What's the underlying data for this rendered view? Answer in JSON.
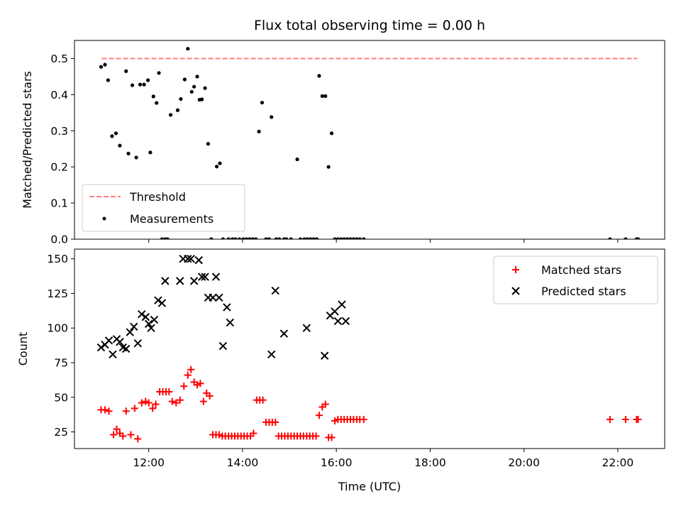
{
  "chart_data": [
    {
      "type": "scatter",
      "title": "Flux total observing time = 0.00 h",
      "xlabel": "",
      "ylabel": "Matched/Predicted stars",
      "xlim": [
        "10:25",
        "23:00"
      ],
      "ylim": [
        0,
        0.55
      ],
      "yticks": [
        0.0,
        0.1,
        0.2,
        0.3,
        0.4,
        0.5
      ],
      "ytick_labels": [
        "0.0",
        "0.1",
        "0.2",
        "0.3",
        "0.4",
        "0.5"
      ],
      "legend_position": "lower-left",
      "series": [
        {
          "name": "Threshold",
          "style": "dashed-line",
          "color": "#ff7f7f",
          "x": [
            "11:00",
            "22:25"
          ],
          "y": [
            0.5,
            0.5
          ]
        },
        {
          "name": "Measurements",
          "style": "dot",
          "color": "#000000",
          "x": [
            "10:59",
            "11:04",
            "11:08",
            "11:13",
            "11:18",
            "11:23",
            "11:31",
            "11:34",
            "11:39",
            "11:44",
            "11:49",
            "11:54",
            "11:59",
            "12:02",
            "12:06",
            "12:10",
            "12:13",
            "12:17",
            "12:21",
            "12:24",
            "12:28",
            "12:37",
            "12:41",
            "12:46",
            "12:50",
            "12:55",
            "12:58",
            "13:02",
            "13:05",
            "13:08",
            "13:12",
            "13:16",
            "13:20",
            "13:27",
            "13:31",
            "13:35",
            "13:42",
            "13:47",
            "13:51",
            "13:56",
            "14:01",
            "14:05",
            "14:09",
            "14:13",
            "14:17",
            "14:21",
            "14:25",
            "14:30",
            "14:34",
            "14:37",
            "14:43",
            "14:47",
            "14:53",
            "14:56",
            "15:02",
            "15:10",
            "15:14",
            "15:19",
            "15:23",
            "15:27",
            "15:31",
            "15:35",
            "15:38",
            "15:42",
            "15:46",
            "15:50",
            "15:54",
            "15:58",
            "16:02",
            "16:06",
            "16:10",
            "16:14",
            "16:18",
            "16:22",
            "16:26",
            "16:30",
            "16:35",
            "21:50",
            "22:10",
            "22:24",
            "22:26"
          ],
          "y": [
            0.477,
            0.483,
            0.44,
            0.285,
            0.293,
            0.259,
            0.465,
            0.237,
            0.426,
            0.226,
            0.428,
            0.428,
            0.44,
            0.24,
            0.395,
            0.377,
            0.46,
            0.0,
            0.0,
            0.0,
            0.344,
            0.357,
            0.388,
            0.442,
            0.527,
            0.408,
            0.422,
            0.45,
            0.386,
            0.387,
            0.418,
            0.264,
            0.0,
            0.201,
            0.21,
            0.0,
            0.0,
            0.0,
            0.0,
            0.0,
            0.0,
            0.0,
            0.0,
            0.0,
            0.0,
            0.298,
            0.378,
            0.0,
            0.0,
            0.338,
            0.0,
            0.0,
            0.0,
            0.0,
            0.0,
            0.221,
            0.0,
            0.0,
            0.0,
            0.0,
            0.0,
            0.0,
            0.452,
            0.396,
            0.396,
            0.2,
            0.293,
            0.0,
            0.0,
            0.0,
            0.0,
            0.0,
            0.0,
            0.0,
            0.0,
            0.0,
            0.0,
            0.0,
            0.0,
            0.0,
            0.0
          ]
        }
      ]
    },
    {
      "type": "scatter",
      "title": "",
      "xlabel": "Time (UTC)",
      "ylabel": "Count",
      "xlim": [
        "10:25",
        "23:00"
      ],
      "ylim": [
        13,
        157
      ],
      "yticks": [
        25,
        50,
        75,
        100,
        125,
        150
      ],
      "ytick_labels": [
        "25",
        "50",
        "75",
        "100",
        "125",
        "150"
      ],
      "xticks": [
        "12:00",
        "14:00",
        "16:00",
        "18:00",
        "20:00",
        "22:00"
      ],
      "xtick_labels": [
        "12:00",
        "14:00",
        "16:00",
        "18:00",
        "20:00",
        "22:00"
      ],
      "legend_position": "upper-right",
      "series": [
        {
          "name": "Matched stars",
          "marker": "plus",
          "color": "#ff0000",
          "x": [
            "10:59",
            "11:04",
            "11:09",
            "11:15",
            "11:19",
            "11:23",
            "11:27",
            "11:31",
            "11:37",
            "11:42",
            "11:46",
            "11:51",
            "11:56",
            "12:00",
            "12:05",
            "12:09",
            "12:14",
            "12:18",
            "12:22",
            "12:26",
            "12:30",
            "12:35",
            "12:40",
            "12:45",
            "12:50",
            "12:54",
            "12:58",
            "13:02",
            "13:06",
            "13:10",
            "13:14",
            "13:18",
            "13:22",
            "13:26",
            "13:30",
            "13:34",
            "13:38",
            "13:42",
            "13:46",
            "13:50",
            "13:54",
            "13:58",
            "14:02",
            "14:06",
            "14:10",
            "14:14",
            "14:18",
            "14:22",
            "14:26",
            "14:30",
            "14:34",
            "14:38",
            "14:42",
            "14:46",
            "14:50",
            "14:54",
            "14:58",
            "15:02",
            "15:06",
            "15:10",
            "15:14",
            "15:18",
            "15:22",
            "15:26",
            "15:30",
            "15:34",
            "15:38",
            "15:42",
            "15:46",
            "15:50",
            "15:54",
            "15:58",
            "16:02",
            "16:06",
            "16:10",
            "16:14",
            "16:18",
            "16:22",
            "16:26",
            "16:30",
            "16:35",
            "21:50",
            "22:10",
            "22:24",
            "22:26"
          ],
          "y": [
            41,
            41,
            40,
            23,
            27,
            24,
            22,
            40,
            23,
            42,
            20,
            46,
            47,
            46,
            42,
            45,
            54,
            54,
            54,
            54,
            47,
            46,
            48,
            58,
            66,
            70,
            61,
            59,
            60,
            47,
            53,
            51,
            23,
            23,
            23,
            22,
            22,
            22,
            22,
            22,
            22,
            22,
            22,
            22,
            22,
            24,
            48,
            48,
            48,
            32,
            32,
            32,
            32,
            22,
            22,
            22,
            22,
            22,
            22,
            22,
            22,
            22,
            22,
            22,
            22,
            22,
            37,
            43,
            45,
            21,
            21,
            33,
            34,
            34,
            34,
            34,
            34,
            34,
            34,
            34,
            34,
            34,
            34,
            34,
            34
          ]
        },
        {
          "name": "Predicted stars",
          "marker": "x",
          "color": "#000000",
          "x": [
            "10:59",
            "11:04",
            "11:09",
            "11:14",
            "11:19",
            "11:23",
            "11:27",
            "11:31",
            "11:36",
            "11:41",
            "11:46",
            "11:51",
            "11:56",
            "12:00",
            "12:03",
            "12:07",
            "12:12",
            "12:17",
            "12:21",
            "12:40",
            "12:44",
            "12:50",
            "12:54",
            "12:58",
            "13:04",
            "13:08",
            "13:12",
            "13:16",
            "13:22",
            "13:26",
            "13:30",
            "13:35",
            "13:40",
            "13:44",
            "14:37",
            "14:42",
            "14:53",
            "15:22",
            "15:45",
            "15:52",
            "15:58",
            "16:02",
            "16:07",
            "16:12"
          ],
          "y": [
            86,
            88,
            91,
            81,
            92,
            90,
            86,
            85,
            97,
            101,
            89,
            110,
            108,
            103,
            100,
            106,
            120,
            118,
            134,
            134,
            150,
            150,
            150,
            134,
            149,
            137,
            137,
            122,
            122,
            137,
            122,
            87,
            115,
            104,
            81,
            127,
            96,
            100,
            80,
            109,
            112,
            105,
            117,
            105
          ]
        }
      ]
    }
  ]
}
